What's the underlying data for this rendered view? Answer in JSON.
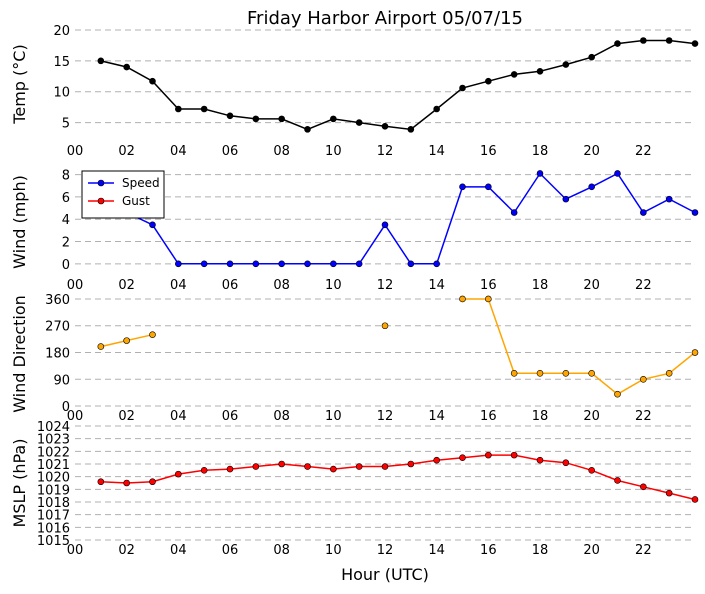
{
  "chart_data": {
    "type": "line",
    "title": "Friday Harbor Airport 05/07/15",
    "xlabel": "Hour (UTC)",
    "x_tick_labels": [
      "00",
      "02",
      "04",
      "06",
      "08",
      "10",
      "12",
      "14",
      "16",
      "18",
      "20",
      "22"
    ],
    "x": [
      1,
      2,
      3,
      4,
      5,
      6,
      7,
      8,
      9,
      10,
      11,
      12,
      13,
      14,
      15,
      16,
      17,
      18,
      19,
      20,
      21,
      22,
      23,
      24
    ],
    "panels": [
      {
        "ylabel": "Temp (°C)",
        "ylim": [
          2.5,
          20
        ],
        "yticks": [
          5,
          10,
          15,
          20
        ],
        "grid": true,
        "series": [
          {
            "name": "",
            "color": "#000000",
            "values": [
              15,
              14,
              11.7,
              7.2,
              7.2,
              6.1,
              5.6,
              5.6,
              3.9,
              5.6,
              5.0,
              4.4,
              3.9,
              7.2,
              10.6,
              11.7,
              12.8,
              13.3,
              14.4,
              15.6,
              17.8,
              18.3,
              18.3,
              17.8
            ]
          }
        ]
      },
      {
        "ylabel": "Wind (mph)",
        "ylim": [
          -1,
          8.5
        ],
        "yticks": [
          0,
          2,
          4,
          6,
          8
        ],
        "legend": "top-left",
        "series": [
          {
            "name": "Speed",
            "color": "#0000ff",
            "values": [
              6.9,
              4.6,
              3.5,
              0,
              0,
              0,
              0,
              0,
              0,
              0,
              0,
              3.5,
              0,
              0,
              6.9,
              6.9,
              4.6,
              8.1,
              5.8,
              6.9,
              8.1,
              4.6,
              5.8,
              4.6
            ]
          },
          {
            "name": "Gust",
            "color": "#ff0000",
            "values": []
          }
        ]
      },
      {
        "ylabel": "Wind Direction",
        "ylim": [
          -20,
          370
        ],
        "yticks": [
          0,
          90,
          180,
          270,
          360
        ],
        "grid": true,
        "series": [
          {
            "name": "",
            "color": "#ffa500",
            "values": [
              200,
              220,
              240,
              null,
              null,
              null,
              null,
              null,
              null,
              null,
              null,
              270,
              null,
              null,
              360,
              360,
              110,
              110,
              110,
              110,
              40,
              90,
              110,
              180
            ]
          }
        ]
      },
      {
        "ylabel": "MSLP (hPa)",
        "ylim": [
          1015,
          1024
        ],
        "yticks": [
          1015,
          1016,
          1017,
          1018,
          1019,
          1020,
          1021,
          1022,
          1023,
          1024
        ],
        "grid": true,
        "series": [
          {
            "name": "",
            "color": "#ff0000",
            "values": [
              1019.6,
              1019.5,
              1019.6,
              1020.2,
              1020.5,
              1020.6,
              1020.8,
              1021.0,
              1020.8,
              1020.6,
              1020.8,
              1020.8,
              1021.0,
              1021.3,
              1021.5,
              1021.7,
              1021.7,
              1021.3,
              1021.1,
              1020.5,
              1019.7,
              1019.2,
              1018.7,
              1018.2
            ]
          }
        ]
      }
    ]
  }
}
